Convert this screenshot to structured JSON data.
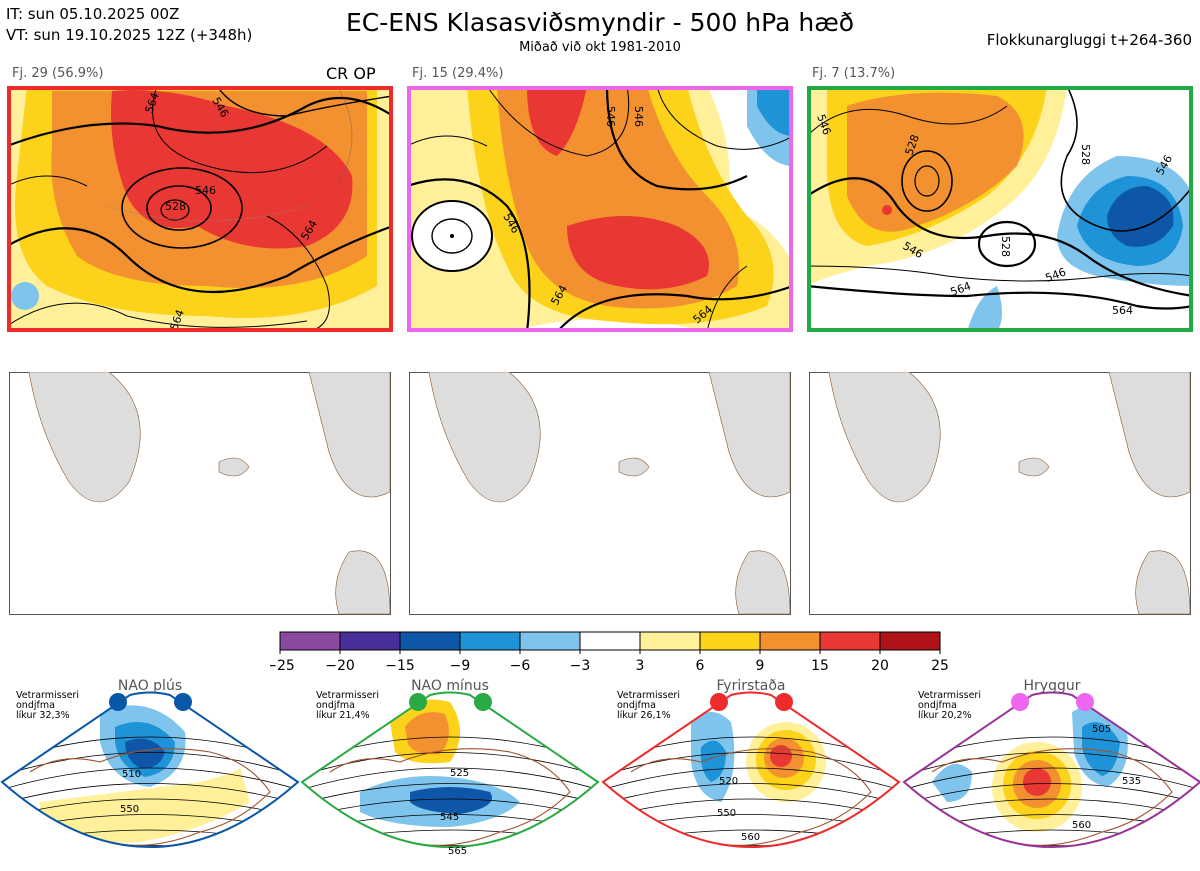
{
  "header": {
    "it": "IT: sun 05.10.2025 00Z",
    "vt": "VT: sun 19.10.2025 12Z  (+348h)",
    "title": "EC-ENS Klasasviðsmyndir - 500 hPa hæð",
    "subtitle": "Miðað við okt 1981-2010",
    "window": "Flokkunargluggi t+264-360"
  },
  "clusters": [
    {
      "label": "Fj. 29 (56.9%)",
      "border": "#ee2b2b",
      "badge": "CR OP",
      "contours": [
        "564",
        "546",
        "528",
        "546",
        "564",
        "564"
      ]
    },
    {
      "label": "Fj. 15 (29.4%)",
      "border": "#ee66ee",
      "contours": [
        "546",
        "546",
        "546",
        "564",
        "564"
      ]
    },
    {
      "label": "Fj. 7 (13.7%)",
      "border": "#22aa44",
      "contours": [
        "546",
        "528",
        "528",
        "546",
        "564",
        "546",
        "546",
        "564",
        "528"
      ]
    }
  ],
  "colorbar": {
    "ticks": [
      "−25",
      "−20",
      "−15",
      "−9",
      "−6",
      "−3",
      "3",
      "6",
      "9",
      "15",
      "20",
      "25"
    ],
    "colors": [
      "#8b4aa0",
      "#4a2f9a",
      "#0e57a8",
      "#1f93d8",
      "#7ec4ec",
      "#ffffff",
      "#fff099",
      "#fcd21a",
      "#f3902f",
      "#e93833",
      "#b01219"
    ]
  },
  "regimes": [
    {
      "title": "NAO plús",
      "note": [
        "Vetrarmisseri",
        "ondjfma",
        "líkur 32,3%"
      ],
      "color": "#0a57a8",
      "dots": "#0a57a8",
      "contours": [
        "510",
        "550"
      ]
    },
    {
      "title": "NAO mínus",
      "note": [
        "Vetrarmisseri",
        "ondjfma",
        "líkur 21,4%"
      ],
      "color": "#2aaa44",
      "dots": "#2aaa44",
      "contours": [
        "525",
        "545",
        "565"
      ]
    },
    {
      "title": "Fyrirstaða",
      "note": [
        "Vetrarmisseri",
        "ondjfma",
        "líkur 26,1%"
      ],
      "color": "#ee2b2b",
      "dots": "#ee2b2b",
      "contours": [
        "520",
        "550",
        "560"
      ]
    },
    {
      "title": "Hryggur",
      "note": [
        "Vetrarmisseri",
        "ondjfma",
        "líkur 20,2%"
      ],
      "color": "#993399",
      "dots": "#ee66ee",
      "contours": [
        "505",
        "535",
        "560"
      ]
    }
  ]
}
